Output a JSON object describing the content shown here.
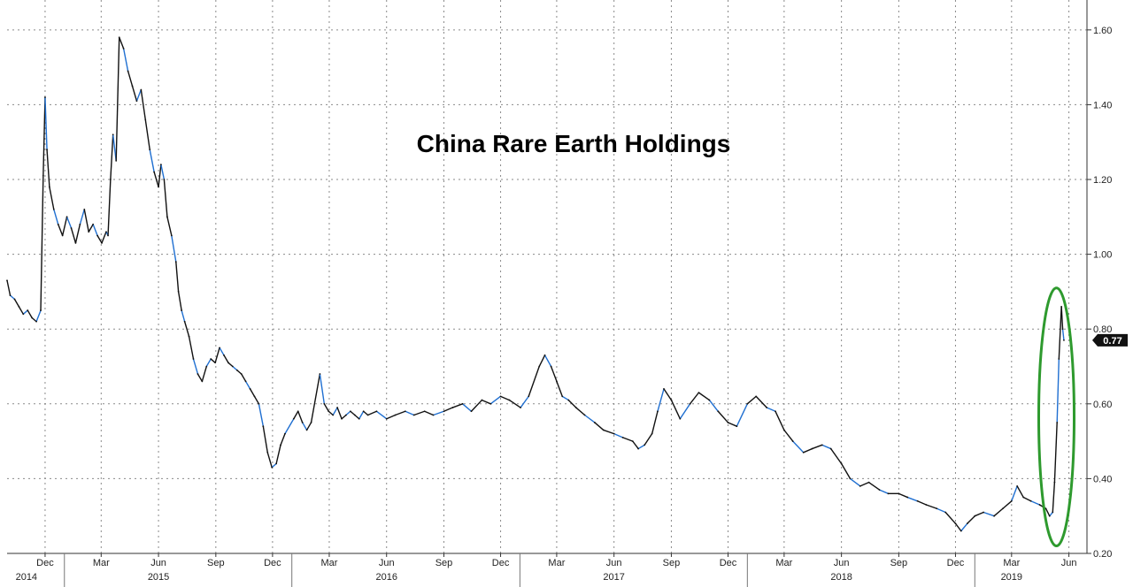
{
  "chart_data": {
    "type": "line",
    "title": "China Rare Earth Holdings",
    "xlabel": "",
    "ylabel": "",
    "ylim": [
      0.2,
      1.68
    ],
    "y_ticks": [
      "0.20",
      "0.40",
      "0.60",
      "0.80",
      "1.00",
      "1.20",
      "1.40",
      "1.60"
    ],
    "x_month_ticks": [
      {
        "date": "2014-12",
        "label": "Dec"
      },
      {
        "date": "2015-03",
        "label": "Mar"
      },
      {
        "date": "2015-06",
        "label": "Jun"
      },
      {
        "date": "2015-09",
        "label": "Sep"
      },
      {
        "date": "2015-12",
        "label": "Dec"
      },
      {
        "date": "2016-03",
        "label": "Mar"
      },
      {
        "date": "2016-06",
        "label": "Jun"
      },
      {
        "date": "2016-09",
        "label": "Sep"
      },
      {
        "date": "2016-12",
        "label": "Dec"
      },
      {
        "date": "2017-03",
        "label": "Mar"
      },
      {
        "date": "2017-06",
        "label": "Jun"
      },
      {
        "date": "2017-09",
        "label": "Sep"
      },
      {
        "date": "2017-12",
        "label": "Dec"
      },
      {
        "date": "2018-03",
        "label": "Mar"
      },
      {
        "date": "2018-06",
        "label": "Jun"
      },
      {
        "date": "2018-09",
        "label": "Sep"
      },
      {
        "date": "2018-12",
        "label": "Dec"
      },
      {
        "date": "2019-03",
        "label": "Mar"
      },
      {
        "date": "2019-06",
        "label": "Jun"
      }
    ],
    "x_year_labels": [
      {
        "date": "2014-11",
        "label": "2014"
      },
      {
        "date": "2015-06",
        "label": "2015"
      },
      {
        "date": "2016-06",
        "label": "2016"
      },
      {
        "date": "2017-06",
        "label": "2017"
      },
      {
        "date": "2018-06",
        "label": "2018"
      },
      {
        "date": "2019-03",
        "label": "2019"
      }
    ],
    "x_year_dividers": [
      "2015-01-01",
      "2016-01-01",
      "2017-01-01",
      "2018-01-01",
      "2019-01-01"
    ],
    "x_range": [
      "2014-10-01",
      "2019-06-30"
    ],
    "last_value_label": "0.77",
    "last_value": 0.77,
    "grid": true,
    "highlight": "green ellipse around May 2019 spike",
    "colors": {
      "series_dark": "#111111",
      "series_blue": "#1f6fd1",
      "highlight": "#2e9a2e",
      "grid": "#8a8a8a",
      "last_label_bg": "#111111"
    },
    "series": [
      {
        "x": [
          "2014-10-01",
          "2014-10-06",
          "2014-10-13",
          "2014-10-20",
          "2014-10-27",
          "2014-11-03",
          "2014-11-10",
          "2014-11-17",
          "2014-11-24",
          "2014-11-28",
          "2014-12-01",
          "2014-12-04",
          "2014-12-08",
          "2014-12-15",
          "2014-12-22",
          "2014-12-29",
          "2015-01-05",
          "2015-01-12",
          "2015-01-19",
          "2015-01-26",
          "2015-02-02",
          "2015-02-09",
          "2015-02-16",
          "2015-02-23",
          "2015-03-02",
          "2015-03-09",
          "2015-03-12",
          "2015-03-16",
          "2015-03-20",
          "2015-03-25",
          "2015-03-30",
          "2015-04-06",
          "2015-04-13",
          "2015-04-20",
          "2015-04-27",
          "2015-05-04",
          "2015-05-11",
          "2015-05-18",
          "2015-05-25",
          "2015-06-01",
          "2015-06-05",
          "2015-06-10",
          "2015-06-15",
          "2015-06-22",
          "2015-06-29",
          "2015-07-03",
          "2015-07-08",
          "2015-07-13",
          "2015-07-20",
          "2015-07-27",
          "2015-08-03",
          "2015-08-10",
          "2015-08-17",
          "2015-08-24",
          "2015-08-31",
          "2015-09-07",
          "2015-09-14",
          "2015-09-21",
          "2015-09-28",
          "2015-10-05",
          "2015-10-12",
          "2015-10-19",
          "2015-10-26",
          "2015-11-02",
          "2015-11-09",
          "2015-11-16",
          "2015-11-23",
          "2015-11-30",
          "2015-12-07",
          "2015-12-14",
          "2015-12-21",
          "2016-01-04",
          "2016-01-11",
          "2016-01-18",
          "2016-01-25",
          "2016-02-01",
          "2016-02-15",
          "2016-02-22",
          "2016-02-29",
          "2016-03-07",
          "2016-03-14",
          "2016-03-21",
          "2016-03-28",
          "2016-04-04",
          "2016-04-11",
          "2016-04-18",
          "2016-04-25",
          "2016-05-02",
          "2016-05-16",
          "2016-06-01",
          "2016-06-15",
          "2016-07-01",
          "2016-07-15",
          "2016-08-01",
          "2016-08-15",
          "2016-09-01",
          "2016-09-15",
          "2016-10-01",
          "2016-10-15",
          "2016-11-01",
          "2016-11-15",
          "2016-12-01",
          "2016-12-15",
          "2017-01-02",
          "2017-01-15",
          "2017-02-01",
          "2017-02-10",
          "2017-02-20",
          "2017-03-01",
          "2017-03-10",
          "2017-03-20",
          "2017-04-01",
          "2017-04-15",
          "2017-05-01",
          "2017-05-15",
          "2017-06-01",
          "2017-06-15",
          "2017-07-01",
          "2017-07-10",
          "2017-07-20",
          "2017-08-01",
          "2017-08-10",
          "2017-08-20",
          "2017-09-01",
          "2017-09-15",
          "2017-10-01",
          "2017-10-15",
          "2017-11-01",
          "2017-11-15",
          "2017-12-01",
          "2017-12-15",
          "2018-01-01",
          "2018-01-15",
          "2018-02-01",
          "2018-02-15",
          "2018-03-01",
          "2018-03-15",
          "2018-04-01",
          "2018-04-15",
          "2018-05-01",
          "2018-05-15",
          "2018-06-01",
          "2018-06-15",
          "2018-07-01",
          "2018-07-15",
          "2018-08-01",
          "2018-08-15",
          "2018-09-01",
          "2018-09-15",
          "2018-10-01",
          "2018-10-15",
          "2018-11-01",
          "2018-11-15",
          "2018-12-01",
          "2018-12-10",
          "2018-12-20",
          "2019-01-01",
          "2019-01-15",
          "2019-02-01",
          "2019-02-15",
          "2019-03-01",
          "2019-03-10",
          "2019-03-20",
          "2019-04-01",
          "2019-04-15",
          "2019-04-25",
          "2019-05-01",
          "2019-05-06",
          "2019-05-09",
          "2019-05-13",
          "2019-05-16",
          "2019-05-20",
          "2019-05-22",
          "2019-05-24"
        ],
        "values": [
          0.93,
          0.89,
          0.88,
          0.86,
          0.84,
          0.85,
          0.83,
          0.82,
          0.85,
          1.21,
          1.42,
          1.28,
          1.18,
          1.12,
          1.08,
          1.05,
          1.1,
          1.07,
          1.03,
          1.08,
          1.12,
          1.06,
          1.08,
          1.05,
          1.03,
          1.06,
          1.05,
          1.2,
          1.32,
          1.25,
          1.58,
          1.55,
          1.49,
          1.45,
          1.41,
          1.44,
          1.36,
          1.28,
          1.22,
          1.18,
          1.24,
          1.2,
          1.1,
          1.05,
          0.98,
          0.9,
          0.85,
          0.82,
          0.78,
          0.72,
          0.68,
          0.66,
          0.7,
          0.72,
          0.71,
          0.75,
          0.73,
          0.71,
          0.7,
          0.69,
          0.68,
          0.66,
          0.64,
          0.62,
          0.6,
          0.54,
          0.47,
          0.43,
          0.44,
          0.49,
          0.52,
          0.56,
          0.58,
          0.55,
          0.53,
          0.55,
          0.68,
          0.6,
          0.58,
          0.57,
          0.59,
          0.56,
          0.57,
          0.58,
          0.57,
          0.56,
          0.58,
          0.57,
          0.58,
          0.56,
          0.57,
          0.58,
          0.57,
          0.58,
          0.57,
          0.58,
          0.59,
          0.6,
          0.58,
          0.61,
          0.6,
          0.62,
          0.61,
          0.59,
          0.62,
          0.7,
          0.73,
          0.7,
          0.66,
          0.62,
          0.61,
          0.59,
          0.57,
          0.55,
          0.53,
          0.52,
          0.51,
          0.5,
          0.48,
          0.49,
          0.52,
          0.58,
          0.64,
          0.61,
          0.56,
          0.6,
          0.63,
          0.61,
          0.58,
          0.55,
          0.54,
          0.6,
          0.62,
          0.59,
          0.58,
          0.53,
          0.5,
          0.47,
          0.48,
          0.49,
          0.48,
          0.44,
          0.4,
          0.38,
          0.39,
          0.37,
          0.36,
          0.36,
          0.35,
          0.34,
          0.33,
          0.32,
          0.31,
          0.28,
          0.26,
          0.28,
          0.3,
          0.31,
          0.3,
          0.32,
          0.34,
          0.38,
          0.35,
          0.34,
          0.33,
          0.32,
          0.3,
          0.31,
          0.39,
          0.55,
          0.72,
          0.86,
          0.8,
          0.77
        ]
      }
    ]
  }
}
